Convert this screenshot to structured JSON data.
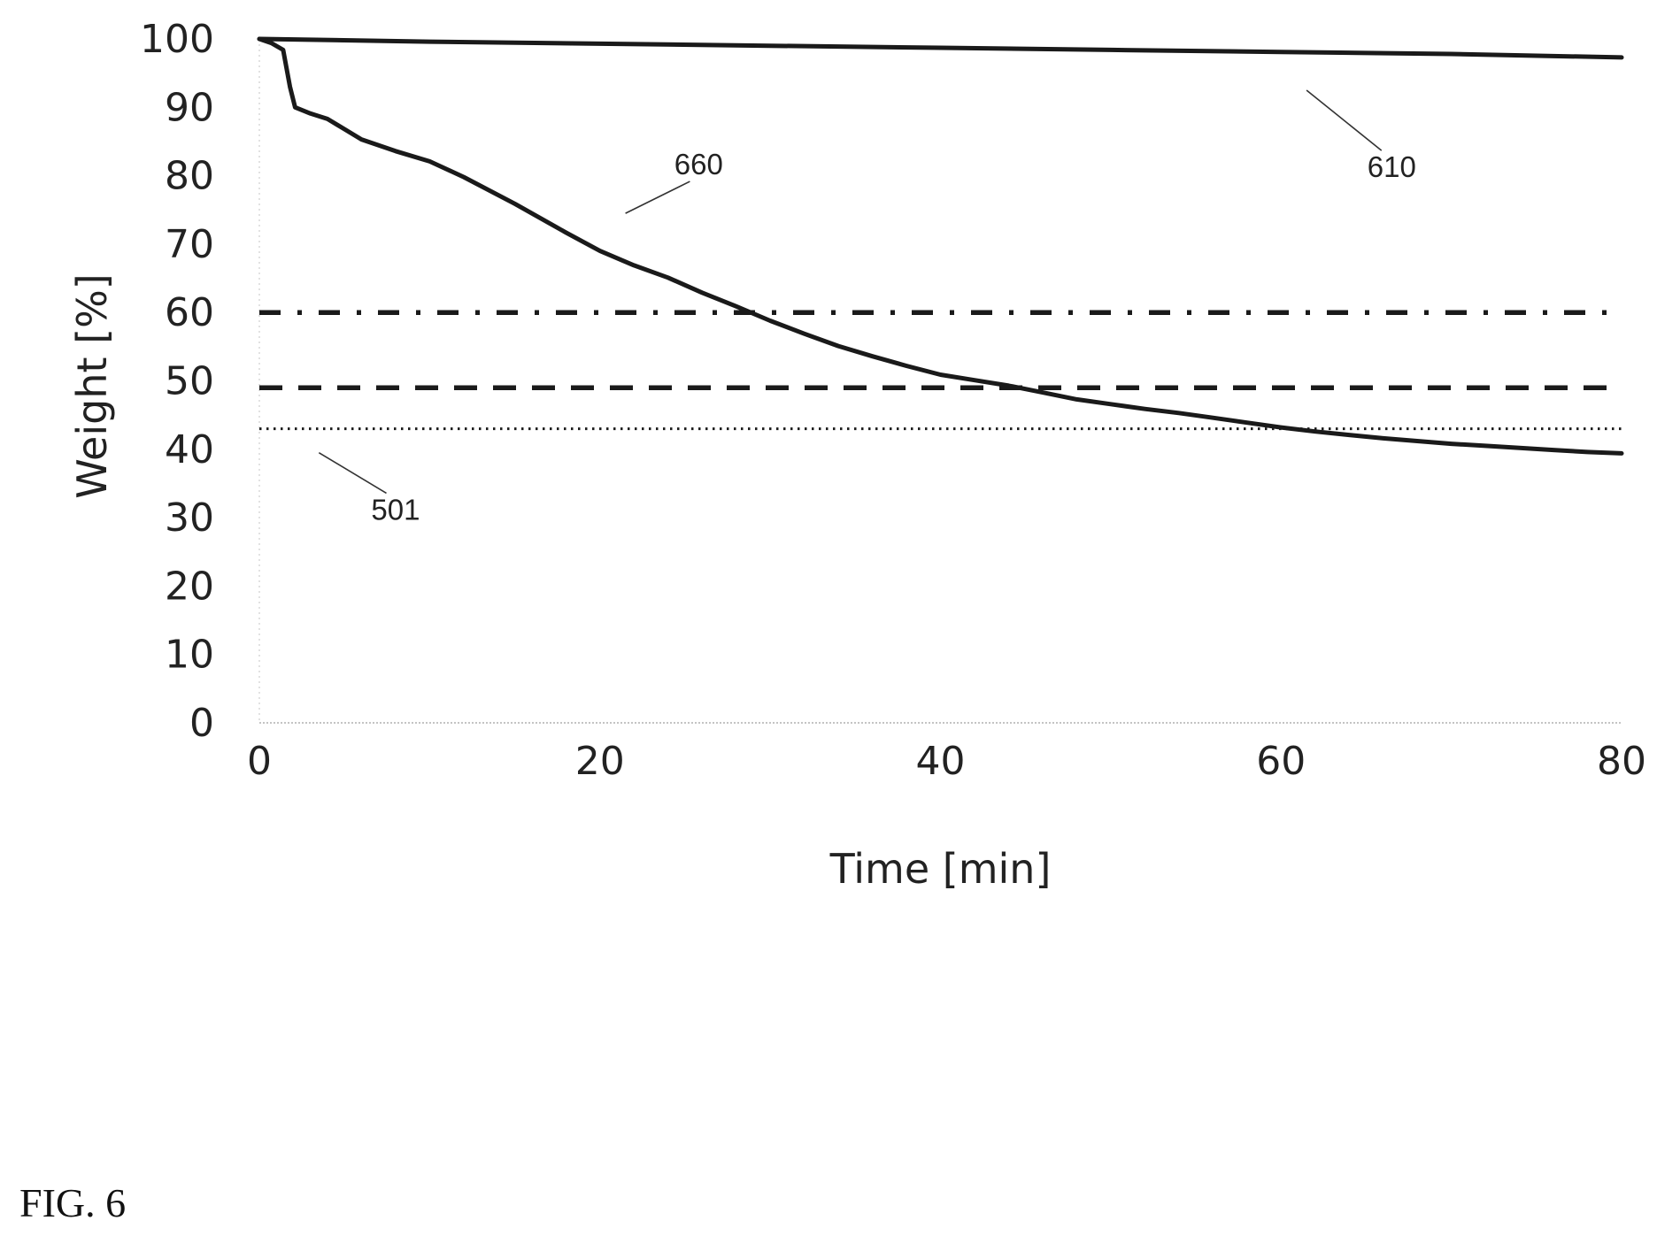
{
  "chart_data": {
    "type": "line",
    "xlabel": "Time [min]",
    "ylabel": "Weight [%]",
    "xlim": [
      0,
      80
    ],
    "ylim": [
      0,
      100
    ],
    "x_ticks": [
      0,
      20,
      40,
      60,
      80
    ],
    "y_ticks": [
      0,
      10,
      20,
      30,
      40,
      50,
      60,
      70,
      80,
      90,
      100
    ],
    "grid": false,
    "legend": "none",
    "series": [
      {
        "name": "610",
        "style": "solid",
        "x": [
          0,
          10,
          20,
          30,
          40,
          50,
          60,
          70,
          80
        ],
        "y": [
          100,
          99.6,
          99.3,
          99.0,
          98.7,
          98.4,
          98.1,
          97.8,
          97.3
        ]
      },
      {
        "name": "660",
        "style": "solid",
        "x": [
          0,
          0.7,
          1.4,
          1.8,
          2.1,
          3,
          4,
          5,
          6,
          8,
          10,
          12,
          15,
          18,
          20,
          22,
          24,
          26,
          28,
          30,
          32,
          34,
          36,
          38,
          40,
          42,
          44,
          46,
          48,
          50,
          52,
          54,
          56,
          58,
          60,
          62,
          64,
          66,
          68,
          70,
          72,
          74,
          76,
          78,
          80
        ],
        "y": [
          100,
          99.4,
          98.4,
          93,
          90,
          89.1,
          88.3,
          86.8,
          85.3,
          83.6,
          82.1,
          79.8,
          75.9,
          71.7,
          69.0,
          66.9,
          65.1,
          62.9,
          60.9,
          58.8,
          56.9,
          55.1,
          53.6,
          52.2,
          50.9,
          50.1,
          49.3,
          48.3,
          47.3,
          46.6,
          45.9,
          45.3,
          44.6,
          43.9,
          43.2,
          42.6,
          42.1,
          41.6,
          41.2,
          40.8,
          40.5,
          40.2,
          39.9,
          39.6,
          39.4
        ]
      },
      {
        "name": "",
        "style": "dash-dot",
        "x": [
          0,
          80
        ],
        "y": [
          60,
          60
        ]
      },
      {
        "name": "",
        "style": "dashed",
        "x": [
          0,
          80
        ],
        "y": [
          49,
          49
        ]
      },
      {
        "name": "501",
        "style": "dotted",
        "x": [
          0,
          80
        ],
        "y": [
          43,
          43
        ]
      }
    ],
    "annotations": [
      {
        "text": "660",
        "x": 25.8,
        "y": 80.2,
        "target_x": 21.5,
        "target_y": 74.5
      },
      {
        "text": "610",
        "x": 66.5,
        "y": 79.8,
        "target_x": 61.5,
        "target_y": 92.5
      },
      {
        "text": "501",
        "x": 8.0,
        "y": 29.7,
        "target_x": 3.5,
        "target_y": 39.5
      }
    ]
  },
  "figure_label": "FIG. 6"
}
